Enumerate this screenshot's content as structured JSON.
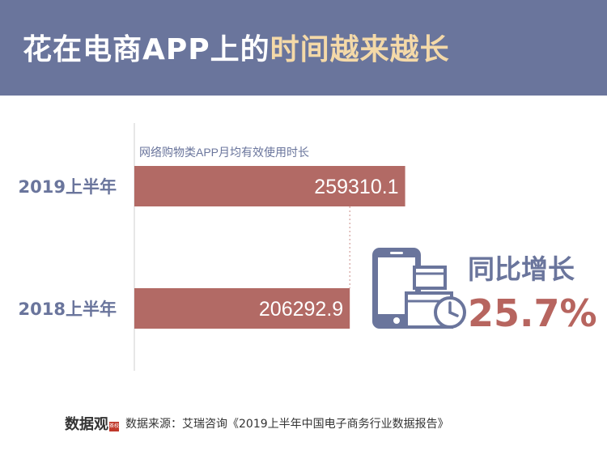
{
  "header": {
    "title_part1": "花在电商APP上的",
    "title_part2": "时间越来越长"
  },
  "chart_data": {
    "type": "bar",
    "orientation": "horizontal",
    "series_label": "网络购物类APP月均有效使用时长",
    "categories": [
      "2019上半年",
      "2018上半年"
    ],
    "values": [
      259310.1,
      206292.9
    ],
    "value_labels": [
      "259310.1",
      "206292.9"
    ],
    "bar_color": "#b26a65",
    "category_color": "#6a759c",
    "xlim": [
      0,
      279000
    ]
  },
  "growth": {
    "label": "同比增长",
    "value": "25.7%",
    "icon": "phone-boxes-clock-icon"
  },
  "footer": {
    "logo_text": "数据观",
    "logo_badge": "茶校",
    "source": "数据来源：艾瑞咨询《2019上半年中国电子商务行业数据报告》"
  },
  "colors": {
    "header_bg": "#6a759c",
    "title_white": "#ffffff",
    "title_highlight": "#f4d9a8",
    "growth_value": "#b7655f"
  }
}
